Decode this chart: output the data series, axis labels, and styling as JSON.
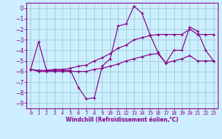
{
  "xlabel": "Windchill (Refroidissement éolien,°C)",
  "bg_color": "#cceeff",
  "line_color": "#880088",
  "grid_color": "#99cccc",
  "xlim": [
    -0.5,
    23.5
  ],
  "ylim": [
    -9.5,
    0.5
  ],
  "xticks": [
    0,
    1,
    2,
    3,
    4,
    5,
    6,
    7,
    8,
    9,
    10,
    11,
    12,
    13,
    14,
    15,
    16,
    17,
    18,
    19,
    20,
    21,
    22,
    23
  ],
  "yticks": [
    0,
    -1,
    -2,
    -3,
    -4,
    -5,
    -6,
    -7,
    -8,
    -9
  ],
  "lines": [
    {
      "x": [
        0,
        1,
        2,
        3,
        4,
        5,
        6,
        7,
        8,
        9,
        10,
        11,
        12,
        13,
        14,
        15,
        16,
        17,
        18,
        19,
        20,
        21,
        22,
        23
      ],
      "y": [
        -5.8,
        -3.2,
        -5.9,
        -5.9,
        -5.9,
        -5.9,
        -7.5,
        -8.6,
        -8.5,
        -5.5,
        -4.8,
        -1.7,
        -1.5,
        0.2,
        -0.5,
        -2.5,
        -4.2,
        -5.2,
        -4.0,
        -4.0,
        -1.8,
        -2.2,
        -4.0,
        -5.0
      ]
    },
    {
      "x": [
        0,
        1,
        2,
        3,
        4,
        5,
        6,
        7,
        8,
        9,
        10,
        11,
        12,
        13,
        14,
        15,
        16,
        17,
        18,
        19,
        20,
        21,
        22,
        23
      ],
      "y": [
        -5.8,
        -5.9,
        -5.9,
        -5.8,
        -5.8,
        -5.7,
        -5.5,
        -5.4,
        -5.0,
        -4.7,
        -4.3,
        -3.8,
        -3.5,
        -3.0,
        -2.8,
        -2.6,
        -2.5,
        -2.5,
        -2.5,
        -2.5,
        -2.0,
        -2.5,
        -2.5,
        -2.5
      ]
    },
    {
      "x": [
        0,
        1,
        2,
        3,
        4,
        5,
        6,
        7,
        8,
        9,
        10,
        11,
        12,
        13,
        14,
        15,
        16,
        17,
        18,
        19,
        20,
        21,
        22,
        23
      ],
      "y": [
        -5.8,
        -6.0,
        -6.0,
        -6.0,
        -6.0,
        -6.0,
        -6.0,
        -6.0,
        -5.8,
        -5.7,
        -5.5,
        -5.3,
        -5.0,
        -4.8,
        -4.6,
        -4.4,
        -4.3,
        -5.2,
        -5.0,
        -4.8,
        -4.5,
        -5.0,
        -5.0,
        -5.0
      ]
    }
  ]
}
